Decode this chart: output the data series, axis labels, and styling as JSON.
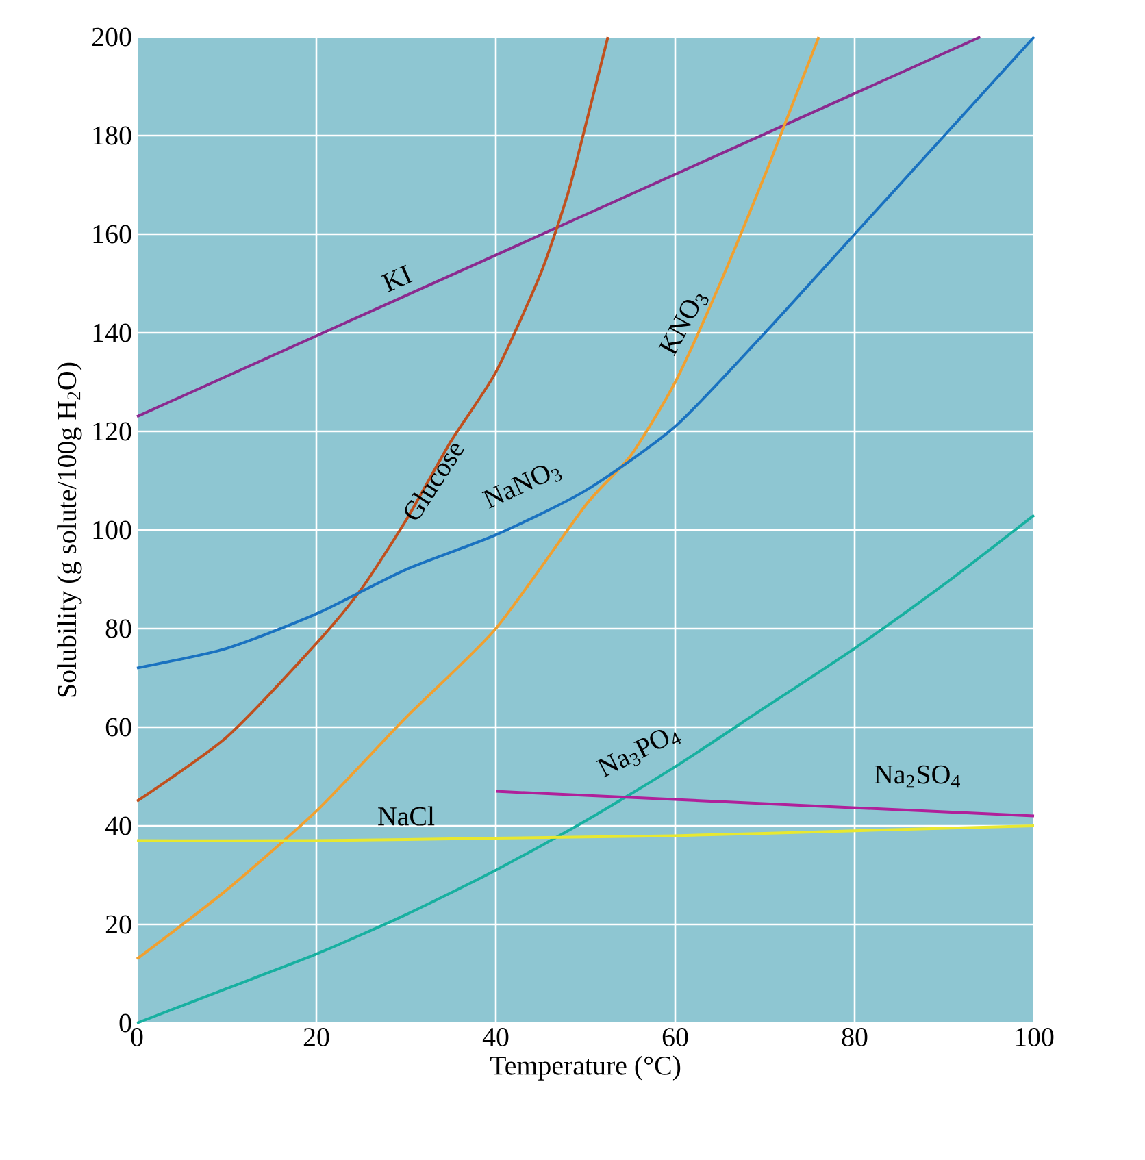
{
  "chart_data": {
    "type": "line",
    "xlabel": "Temperature (°C)",
    "ylabel": "Solubility (g solute/100g H$_{2}$O)",
    "xlim": [
      0,
      100
    ],
    "ylim": [
      0,
      200
    ],
    "xticks": [
      0,
      20,
      40,
      60,
      80,
      100
    ],
    "yticks": [
      0,
      20,
      40,
      60,
      80,
      100,
      120,
      140,
      160,
      180,
      200
    ],
    "grid": true,
    "legend": false,
    "marker": "none",
    "line_style": "solid",
    "series": [
      {
        "name": "KI",
        "color": "#8b2a8f",
        "x": [
          0,
          94
        ],
        "values": [
          123,
          200
        ]
      },
      {
        "name": "Glucose",
        "color": "#c0501e",
        "x": [
          0,
          10,
          20,
          25,
          30,
          35,
          40,
          45,
          48,
          50,
          52.5
        ],
        "values": [
          45,
          58,
          77,
          88,
          102,
          118,
          132,
          152,
          168,
          182,
          200
        ]
      },
      {
        "name": "KNO$_{3}$",
        "color": "#f0a030",
        "x": [
          0,
          10,
          20,
          30,
          40,
          50,
          55,
          60,
          65,
          70,
          73,
          76
        ],
        "values": [
          13,
          27,
          43,
          62,
          80,
          105,
          115,
          130,
          150,
          172,
          186,
          200
        ]
      },
      {
        "name": "NaNO$_{3}$",
        "color": "#1a72c0",
        "x": [
          0,
          10,
          20,
          30,
          40,
          50,
          60,
          70,
          80,
          90,
          95,
          100
        ],
        "values": [
          72,
          76,
          83,
          92,
          99,
          108,
          121,
          140,
          160,
          180,
          190,
          200
        ]
      },
      {
        "name": "Na$_{3}$PO$_{4}$",
        "color": "#18b0a0",
        "x": [
          0,
          10,
          20,
          30,
          40,
          50,
          60,
          70,
          80,
          90,
          100
        ],
        "values": [
          0,
          7,
          14,
          22,
          31,
          41,
          52,
          64,
          76,
          89,
          103
        ]
      },
      {
        "name": "Na$_{2}$SO$_{4}$",
        "color": "#b0209a",
        "x": [
          40,
          100
        ],
        "values": [
          47,
          42
        ]
      },
      {
        "name": "NaCl",
        "color": "#e8e830",
        "x": [
          0,
          20,
          40,
          60,
          80,
          100
        ],
        "values": [
          37,
          37,
          37.5,
          38,
          39,
          40
        ]
      }
    ]
  }
}
